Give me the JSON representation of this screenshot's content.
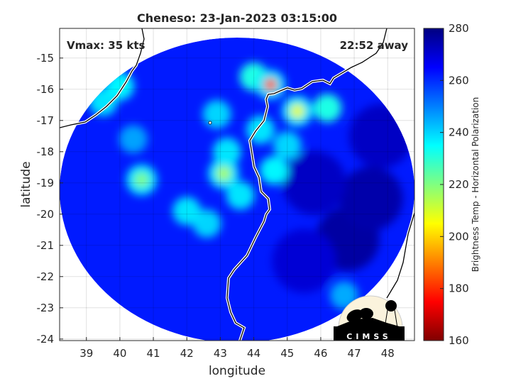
{
  "chart_data": {
    "type": "heatmap",
    "title": "Cheneso: 23-Jan-2023 03:15:00",
    "xlabel": "longitude",
    "ylabel": "latitude",
    "xlim": [
      38.2,
      48.8
    ],
    "ylim": [
      -24.05,
      -14.05
    ],
    "xticks": [
      39,
      40,
      41,
      42,
      43,
      44,
      45,
      46,
      47,
      48
    ],
    "yticks": [
      -15,
      -16,
      -17,
      -18,
      -19,
      -20,
      -21,
      -22,
      -23,
      -24
    ],
    "grid": true,
    "colorbar": {
      "label": "Brightness Temp - Horizontal Polarization",
      "colormap": "jet",
      "range": [
        160,
        280
      ],
      "ticks": [
        160,
        180,
        200,
        220,
        240,
        260,
        280
      ]
    },
    "annotations": {
      "vmax": "Vmax: 35 kts",
      "time_away": "22:52 away"
    },
    "background_value": 262,
    "features": [
      {
        "lon": 44.5,
        "lat": -15.85,
        "value": 185
      },
      {
        "lon": 45.3,
        "lat": -16.7,
        "value": 208
      },
      {
        "lon": 43.1,
        "lat": -18.7,
        "value": 215
      },
      {
        "lon": 40.65,
        "lat": -18.9,
        "value": 220
      },
      {
        "lon": 44.0,
        "lat": -15.6,
        "value": 232
      },
      {
        "lon": 44.2,
        "lat": -17.3,
        "value": 238
      },
      {
        "lon": 45.0,
        "lat": -17.8,
        "value": 240
      },
      {
        "lon": 46.2,
        "lat": -16.6,
        "value": 232
      },
      {
        "lon": 39.5,
        "lat": -16.4,
        "value": 238
      },
      {
        "lon": 40.0,
        "lat": -15.9,
        "value": 236
      },
      {
        "lon": 42.9,
        "lat": -16.8,
        "value": 240
      },
      {
        "lon": 43.6,
        "lat": -19.4,
        "value": 238
      },
      {
        "lon": 44.6,
        "lat": -18.6,
        "value": 236
      },
      {
        "lon": 43.2,
        "lat": -18.0,
        "value": 238
      },
      {
        "lon": 42.0,
        "lat": -19.9,
        "value": 238
      },
      {
        "lon": 42.6,
        "lat": -20.3,
        "value": 240
      },
      {
        "lon": 40.4,
        "lat": -17.6,
        "value": 246
      },
      {
        "lon": 46.7,
        "lat": -22.6,
        "value": 245
      },
      {
        "lon": 47.5,
        "lat": -19.5,
        "value": 275
      },
      {
        "lon": 46.8,
        "lat": -20.8,
        "value": 276
      },
      {
        "lon": 47.8,
        "lat": -17.5,
        "value": 272
      },
      {
        "lon": 45.5,
        "lat": -21.5,
        "value": 270
      },
      {
        "lon": 45.8,
        "lat": -19.0,
        "value": 272
      }
    ],
    "logo": "CIMSS"
  }
}
